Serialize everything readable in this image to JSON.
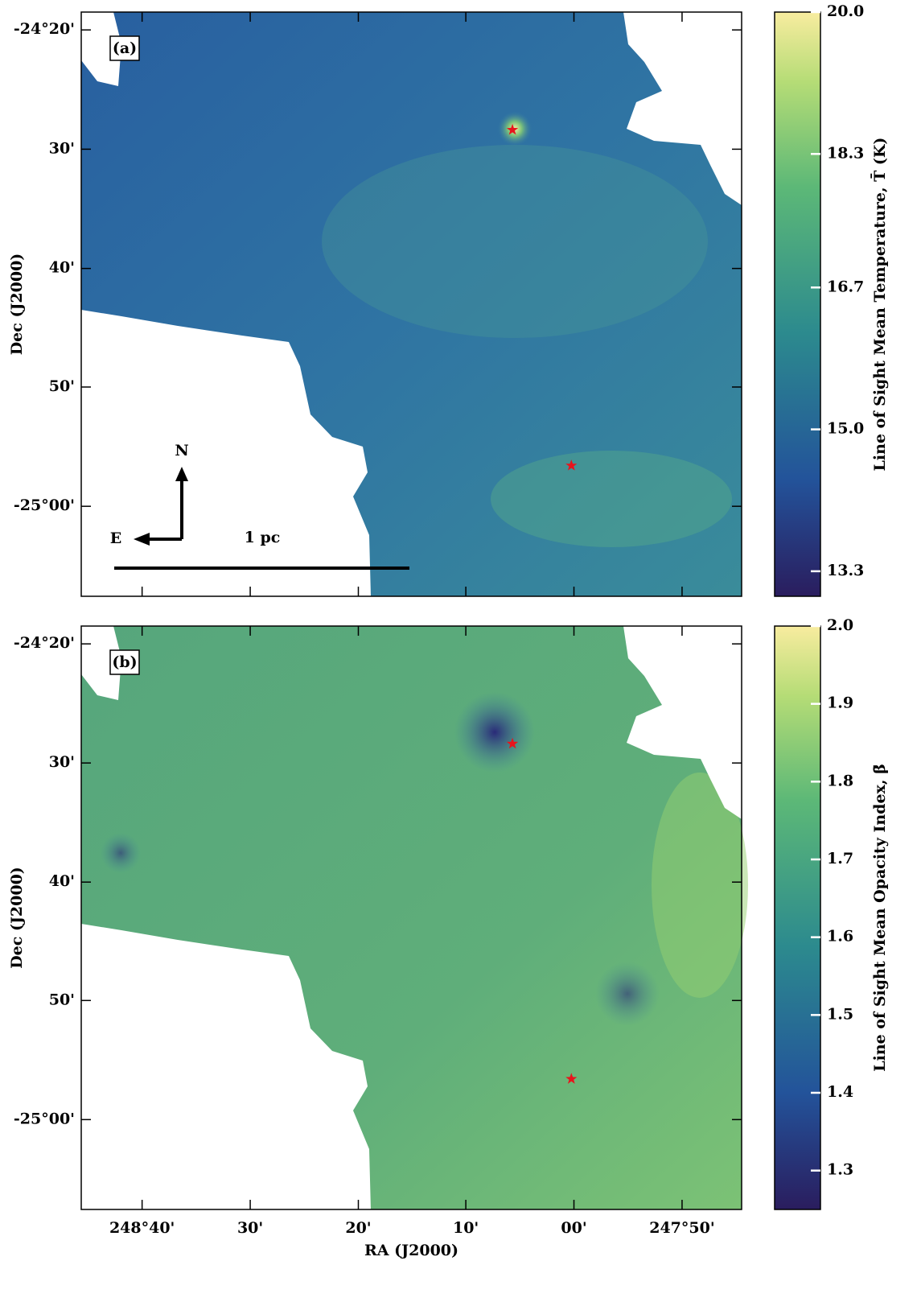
{
  "chart_data": [
    {
      "type": "image",
      "panel_label": "(a)",
      "ylabel": "Dec (J2000)",
      "xlim": [
        248.761,
        247.741
      ],
      "xticks": [
        248.667,
        248.5,
        248.333,
        248.167,
        248.0,
        247.833
      ],
      "ylim": [
        -25.126,
        -24.308
      ],
      "yticks": [
        {
          "value": -24.333,
          "label": "-24°20'"
        },
        {
          "value": -24.5,
          "label": "30'"
        },
        {
          "value": -24.667,
          "label": "40'"
        },
        {
          "value": -24.833,
          "label": "50'"
        },
        {
          "value": -25.0,
          "label": "-25°00'"
        }
      ],
      "colorbar": {
        "label": "Line of Sight Mean Temperature, T̄ (K)",
        "clim": [
          13.0,
          20.0
        ],
        "ticks": [
          13.3,
          {
            "value": 15.0,
            "label": "15.0"
          },
          16.7,
          18.3,
          {
            "value": 20.0,
            "label": "20.0"
          }
        ]
      },
      "sources": {
        "color": "#e8141c",
        "x": [
          248.095,
          248.004
        ],
        "y": [
          -24.473,
          -24.943
        ]
      },
      "compass": {
        "north": "N",
        "east": "E"
      },
      "scalebar": "1 pc"
    },
    {
      "type": "image",
      "panel_label": "(b)",
      "xlabel": "RA (J2000)",
      "ylabel": "Dec (J2000)",
      "xlim": [
        248.761,
        247.741
      ],
      "xticks": [
        {
          "value": 248.667,
          "label": "248°40'"
        },
        {
          "value": 248.5,
          "label": "30'"
        },
        {
          "value": 248.333,
          "label": "20'"
        },
        {
          "value": 248.167,
          "label": "10'"
        },
        {
          "value": 248.0,
          "label": "00'"
        },
        {
          "value": 247.833,
          "label": "247°50'"
        }
      ],
      "ylim": [
        -25.126,
        -24.308
      ],
      "yticks": [
        {
          "value": -24.333,
          "label": "-24°20'"
        },
        {
          "value": -24.5,
          "label": "30'"
        },
        {
          "value": -24.667,
          "label": "40'"
        },
        {
          "value": -24.833,
          "label": "50'"
        },
        {
          "value": -25.0,
          "label": "-25°00'"
        }
      ],
      "colorbar": {
        "label": "Line of Sight Mean Opacity Index, β̄",
        "clim": [
          1.25,
          2.0
        ],
        "ticks": [
          1.3,
          1.4,
          1.5,
          1.6,
          1.7,
          1.8,
          1.9,
          {
            "value": 2.0,
            "label": "2.0"
          }
        ]
      },
      "sources": {
        "color": "#e8141c",
        "x": [
          248.095,
          248.004
        ],
        "y": [
          -24.473,
          -24.943
        ]
      }
    }
  ]
}
